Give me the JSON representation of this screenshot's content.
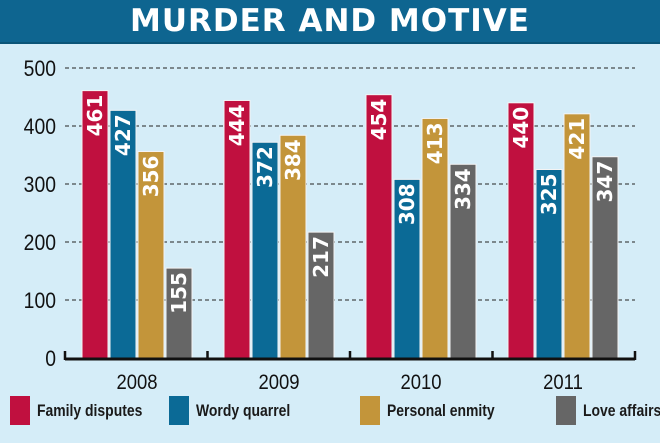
{
  "chart_data": {
    "type": "bar",
    "title": "MURDER AND MOTIVE",
    "categories": [
      "2008",
      "2009",
      "2010",
      "2011"
    ],
    "series": [
      {
        "name": "Family disputes",
        "color": "#c0103f",
        "values": [
          461,
          444,
          454,
          440
        ]
      },
      {
        "name": "Wordy quarrel",
        "color": "#0b6a96",
        "values": [
          427,
          372,
          308,
          325
        ]
      },
      {
        "name": "Personal enmity",
        "color": "#c3953a",
        "values": [
          356,
          384,
          413,
          421
        ]
      },
      {
        "name": "Love affairs",
        "color": "#666666",
        "values": [
          155,
          217,
          334,
          347
        ]
      }
    ],
    "yticks": [
      "0",
      "100",
      "200",
      "300",
      "400",
      "500"
    ],
    "ylim": [
      0,
      500
    ],
    "grid": "dashed horizontal",
    "legend_position": "bottom",
    "data_labels": "on bars, rotated, white"
  }
}
